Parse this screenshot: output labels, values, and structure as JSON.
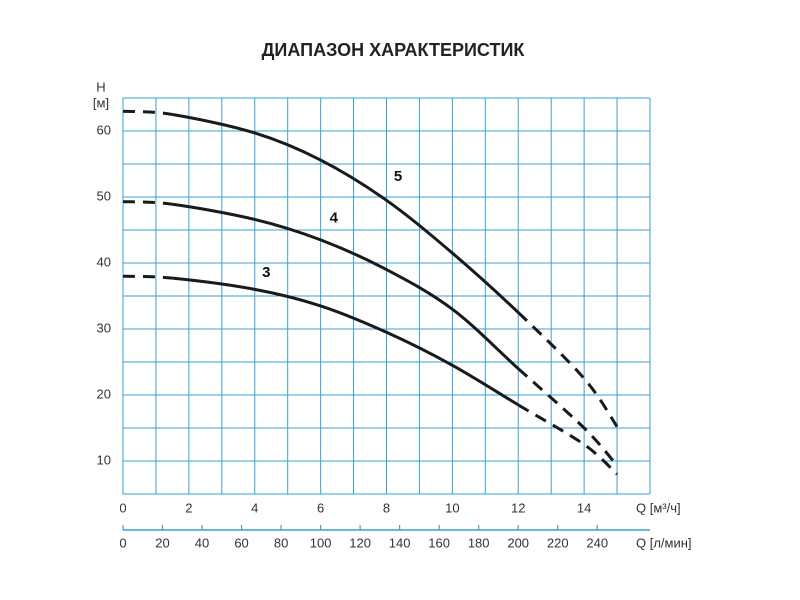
{
  "chart_data": {
    "type": "line",
    "title": "ДИАПАЗОН ХАРАКТЕРИСТИК",
    "y_label": "H",
    "y_unit": "[м]",
    "x_label": "Q [м³/ч]",
    "x2_label": "Q [л/мин]",
    "xlim": [
      0,
      16
    ],
    "xticks": [
      0,
      2,
      4,
      6,
      8,
      10,
      12,
      14
    ],
    "x2lim": [
      0,
      266.7
    ],
    "x2ticks": [
      0,
      20,
      40,
      60,
      80,
      100,
      120,
      140,
      160,
      180,
      200,
      220,
      240
    ],
    "ylim": [
      5,
      65
    ],
    "yticks": [
      10,
      20,
      30,
      40,
      50,
      60
    ],
    "xgrid": [
      0,
      1,
      2,
      3,
      4,
      5,
      6,
      7,
      8,
      9,
      10,
      11,
      12,
      13,
      14,
      15,
      16
    ],
    "ygrid": [
      5,
      10,
      15,
      20,
      25,
      30,
      35,
      40,
      45,
      50,
      55,
      60,
      65
    ],
    "grid_color": "#3a9fd6",
    "solid_xlim": [
      1.5,
      12
    ],
    "x": [
      0,
      1.5,
      4,
      6,
      8,
      10,
      12,
      14,
      15
    ],
    "series": [
      {
        "name": "5",
        "color": "#1a1a1a",
        "values": [
          63,
          62.5,
          59.7,
          55.6,
          49.5,
          41.5,
          32.5,
          22.5,
          15.2
        ]
      },
      {
        "name": "4",
        "color": "#1a1a1a",
        "values": [
          49.3,
          48.9,
          46.6,
          43.5,
          39,
          33,
          24,
          15,
          9.3
        ]
      },
      {
        "name": "3",
        "color": "#1a1a1a",
        "values": [
          38,
          37.7,
          36,
          33.5,
          29.5,
          24.5,
          18.5,
          12.5,
          8
        ]
      }
    ]
  }
}
